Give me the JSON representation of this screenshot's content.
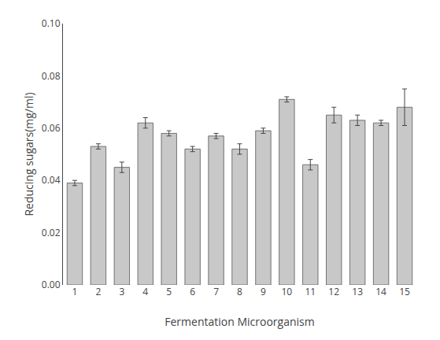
{
  "chart_data": {
    "type": "bar",
    "xlabel": "Fermentation Microorganism",
    "ylabel": "Reducing sugars(mg/ml)",
    "categories": [
      "1",
      "2",
      "3",
      "4",
      "5",
      "6",
      "7",
      "8",
      "9",
      "10",
      "11",
      "12",
      "13",
      "14",
      "15"
    ],
    "values": [
      0.039,
      0.053,
      0.045,
      0.062,
      0.058,
      0.052,
      0.057,
      0.052,
      0.059,
      0.071,
      0.046,
      0.065,
      0.063,
      0.062,
      0.068
    ],
    "errors": [
      0.001,
      0.001,
      0.002,
      0.002,
      0.001,
      0.001,
      0.001,
      0.002,
      0.001,
      0.001,
      0.002,
      0.003,
      0.002,
      0.001,
      0.007
    ],
    "color": "#c8c8c8",
    "ylim": [
      0.0,
      0.1
    ],
    "yticks": [
      {
        "value": 0.0,
        "label": "0.00"
      },
      0.02,
      0.04,
      0.06,
      0.08,
      {
        "value": 0.1,
        "label": "0.10"
      }
    ],
    "grid": false
  }
}
